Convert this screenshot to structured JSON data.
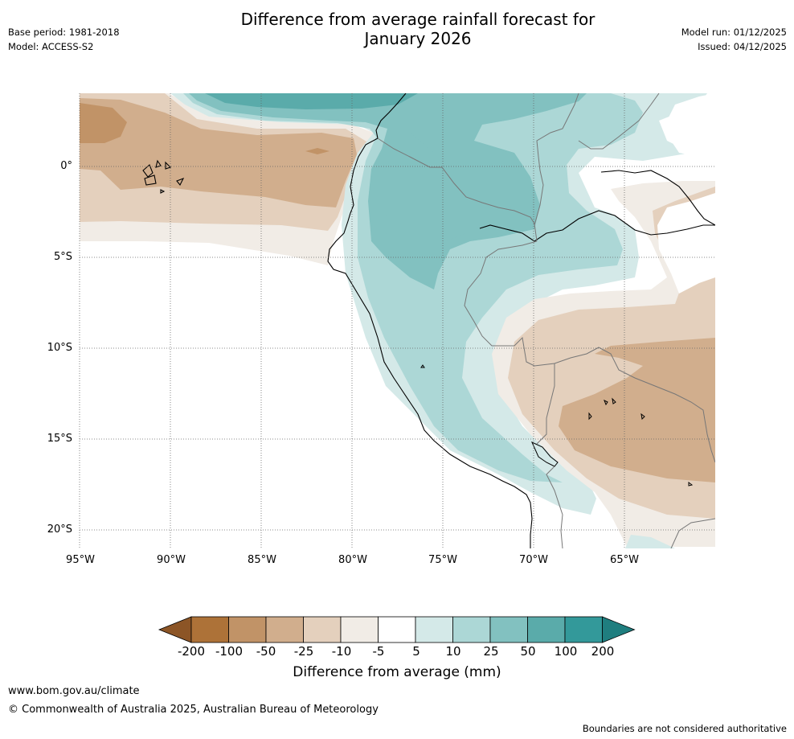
{
  "title_line1": "Difference from average rainfall forecast for",
  "title_line2": "January 2026",
  "base_period": "Base period: 1981-2018",
  "model": "Model: ACCESS-S2",
  "model_run": "Model run: 01/12/2025",
  "issued": "Issued: 04/12/2025",
  "lat_labels": [
    "0°",
    "5°S",
    "10°S",
    "15°S",
    "20°S"
  ],
  "lon_labels": [
    "95°W",
    "90°W",
    "85°W",
    "80°W",
    "75°W",
    "70°W",
    "65°W"
  ],
  "colorbar": {
    "title": "Difference from average (mm)",
    "ticks": [
      "-200",
      "-100",
      "-50",
      "-25",
      "-10",
      "-5",
      "5",
      "10",
      "25",
      "50",
      "100",
      "200"
    ],
    "colors": [
      "#8c5526",
      "#ad7238",
      "#c19367",
      "#d1ae8d",
      "#e4d0bd",
      "#f1ece6",
      "#ffffff",
      "#d4e9e8",
      "#acd7d6",
      "#82c1c0",
      "#5aabaa",
      "#33999a",
      "#1f7e7f"
    ]
  },
  "footer_url": "www.bom.gov.au/climate",
  "footer_copyright": "© Commonwealth of Australia 2025, Australian Bureau of Meteorology",
  "disclaimer": "Boundaries are not considered authoritative"
}
